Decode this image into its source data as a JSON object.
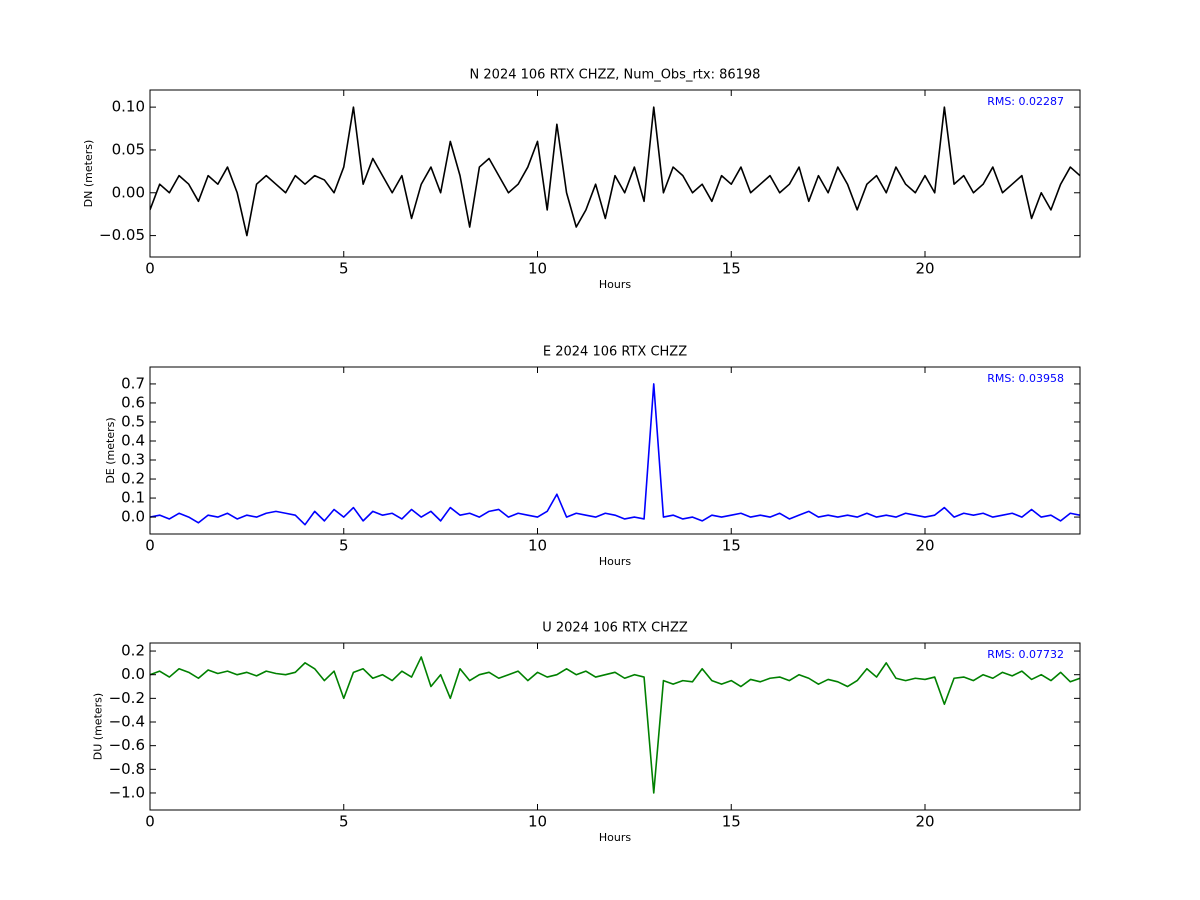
{
  "chart_data": [
    {
      "type": "line",
      "title": "N 2024 106 RTX  CHZZ, Num_Obs_rtx: 86198",
      "xlabel": "Hours",
      "ylabel": "DN (meters)",
      "annotation": "RMS:  0.02287",
      "annotation_color": "#0000ff",
      "color": "#000000",
      "xlim": [
        0,
        24
      ],
      "xticks": [
        0,
        5,
        10,
        15,
        20
      ],
      "ylim": [
        -0.075,
        0.12
      ],
      "yticks": [
        {
          "value": -0.05,
          "label": "−0.05"
        },
        {
          "value": 0,
          "label": "0.00"
        },
        0.05,
        {
          "value": 0.1,
          "label": "0.10"
        }
      ],
      "x": [
        0,
        0.25,
        0.5,
        0.75,
        1,
        1.25,
        1.5,
        1.75,
        2,
        2.25,
        2.5,
        2.75,
        3,
        3.25,
        3.5,
        3.75,
        4,
        4.25,
        4.5,
        4.75,
        5,
        5.25,
        5.5,
        5.75,
        6,
        6.25,
        6.5,
        6.75,
        7,
        7.25,
        7.5,
        7.75,
        8,
        8.25,
        8.5,
        8.75,
        9,
        9.25,
        9.5,
        9.75,
        10,
        10.25,
        10.5,
        10.75,
        11,
        11.25,
        11.5,
        11.75,
        12,
        12.25,
        12.5,
        12.75,
        13,
        13.25,
        13.5,
        13.75,
        14,
        14.25,
        14.5,
        14.75,
        15,
        15.25,
        15.5,
        15.75,
        16,
        16.25,
        16.5,
        16.75,
        17,
        17.25,
        17.5,
        17.75,
        18,
        18.25,
        18.5,
        18.75,
        19,
        19.25,
        19.5,
        19.75,
        20,
        20.25,
        20.5,
        20.75,
        21,
        21.25,
        21.5,
        21.75,
        22,
        22.25,
        22.5,
        22.75,
        23,
        23.25,
        23.5,
        23.75,
        24
      ],
      "values": [
        -0.02,
        0.01,
        0.0,
        0.02,
        0.01,
        -0.01,
        0.02,
        0.01,
        0.03,
        0.0,
        -0.05,
        0.01,
        0.02,
        0.01,
        0.0,
        0.02,
        0.01,
        0.02,
        0.015,
        0.0,
        0.03,
        0.1,
        0.01,
        0.04,
        0.02,
        0.0,
        0.02,
        -0.03,
        0.01,
        0.03,
        0.0,
        0.06,
        0.02,
        -0.04,
        0.03,
        0.04,
        0.02,
        0.0,
        0.01,
        0.03,
        0.06,
        -0.02,
        0.08,
        0.0,
        -0.04,
        -0.02,
        0.01,
        -0.03,
        0.02,
        0.0,
        0.03,
        -0.01,
        0.1,
        0.0,
        0.03,
        0.02,
        0.0,
        0.01,
        -0.01,
        0.02,
        0.01,
        0.03,
        0.0,
        0.01,
        0.02,
        0.0,
        0.01,
        0.03,
        -0.01,
        0.02,
        0.0,
        0.03,
        0.01,
        -0.02,
        0.01,
        0.02,
        0.0,
        0.03,
        0.01,
        0.0,
        0.02,
        0.0,
        0.1,
        0.01,
        0.02,
        0.0,
        0.01,
        0.03,
        0.0,
        0.01,
        0.02,
        -0.03,
        0.0,
        -0.02,
        0.01,
        0.03,
        0.02
      ]
    },
    {
      "type": "line",
      "title": "E 2024 106 RTX  CHZZ",
      "xlabel": "Hours",
      "ylabel": "DE (meters)",
      "annotation": "RMS:  0.03958",
      "annotation_color": "#0000ff",
      "color": "#0000ff",
      "xlim": [
        0,
        24
      ],
      "xticks": [
        0,
        5,
        10,
        15,
        20
      ],
      "ylim": [
        -0.089,
        0.789
      ],
      "yticks": [
        {
          "value": 0,
          "label": "0.0"
        },
        0.1,
        0.2,
        0.3,
        0.4,
        0.5,
        0.6,
        0.7
      ],
      "x": [
        0,
        0.25,
        0.5,
        0.75,
        1,
        1.25,
        1.5,
        1.75,
        2,
        2.25,
        2.5,
        2.75,
        3,
        3.25,
        3.5,
        3.75,
        4,
        4.25,
        4.5,
        4.75,
        5,
        5.25,
        5.5,
        5.75,
        6,
        6.25,
        6.5,
        6.75,
        7,
        7.25,
        7.5,
        7.75,
        8,
        8.25,
        8.5,
        8.75,
        9,
        9.25,
        9.5,
        9.75,
        10,
        10.25,
        10.5,
        10.75,
        11,
        11.25,
        11.5,
        11.75,
        12,
        12.25,
        12.5,
        12.75,
        13,
        13.25,
        13.5,
        13.75,
        14,
        14.25,
        14.5,
        14.75,
        15,
        15.25,
        15.5,
        15.75,
        16,
        16.25,
        16.5,
        16.75,
        17,
        17.25,
        17.5,
        17.75,
        18,
        18.25,
        18.5,
        18.75,
        19,
        19.25,
        19.5,
        19.75,
        20,
        20.25,
        20.5,
        20.75,
        21,
        21.25,
        21.5,
        21.75,
        22,
        22.25,
        22.5,
        22.75,
        23,
        23.25,
        23.5,
        23.75,
        24
      ],
      "values": [
        0,
        0.01,
        -0.01,
        0.02,
        0.0,
        -0.03,
        0.01,
        0.0,
        0.02,
        -0.01,
        0.01,
        0.0,
        0.02,
        0.03,
        0.02,
        0.01,
        -0.04,
        0.03,
        -0.02,
        0.04,
        0.0,
        0.05,
        -0.02,
        0.03,
        0.01,
        0.02,
        -0.01,
        0.04,
        0.0,
        0.03,
        -0.02,
        0.05,
        0.01,
        0.02,
        0.0,
        0.03,
        0.04,
        0.0,
        0.02,
        0.01,
        0.0,
        0.03,
        0.12,
        0.0,
        0.02,
        0.01,
        0.0,
        0.02,
        0.01,
        -0.01,
        0.0,
        -0.01,
        0.7,
        0.0,
        0.01,
        -0.01,
        0.0,
        -0.02,
        0.01,
        0.0,
        0.01,
        0.02,
        0.0,
        0.01,
        0.0,
        0.02,
        -0.01,
        0.01,
        0.03,
        0.0,
        0.01,
        0.0,
        0.01,
        0.0,
        0.02,
        0.0,
        0.01,
        0.0,
        0.02,
        0.01,
        0.0,
        0.01,
        0.05,
        0.0,
        0.02,
        0.01,
        0.02,
        0.0,
        0.01,
        0.02,
        0.0,
        0.04,
        0.0,
        0.01,
        -0.02,
        0.02,
        0.01
      ]
    },
    {
      "type": "line",
      "title": "U 2024 106 RTX  CHZZ",
      "xlabel": "Hours",
      "ylabel": "DU (meters)",
      "annotation": "RMS:  0.07732",
      "annotation_color": "#0000ff",
      "color": "#008000",
      "xlim": [
        0,
        24
      ],
      "xticks": [
        0,
        5,
        10,
        15,
        20
      ],
      "ylim": [
        -1.144,
        0.268
      ],
      "yticks": [
        {
          "value": -1.0,
          "label": "−1.0"
        },
        {
          "value": -0.8,
          "label": "−0.8"
        },
        {
          "value": -0.6,
          "label": "−0.6"
        },
        {
          "value": -0.4,
          "label": "−0.4"
        },
        {
          "value": -0.2,
          "label": "−0.2"
        },
        {
          "value": 0,
          "label": "0.0"
        },
        0.2
      ],
      "x": [
        0,
        0.25,
        0.5,
        0.75,
        1,
        1.25,
        1.5,
        1.75,
        2,
        2.25,
        2.5,
        2.75,
        3,
        3.25,
        3.5,
        3.75,
        4,
        4.25,
        4.5,
        4.75,
        5,
        5.25,
        5.5,
        5.75,
        6,
        6.25,
        6.5,
        6.75,
        7,
        7.25,
        7.5,
        7.75,
        8,
        8.25,
        8.5,
        8.75,
        9,
        9.25,
        9.5,
        9.75,
        10,
        10.25,
        10.5,
        10.75,
        11,
        11.25,
        11.5,
        11.75,
        12,
        12.25,
        12.5,
        12.75,
        13,
        13.25,
        13.5,
        13.75,
        14,
        14.25,
        14.5,
        14.75,
        15,
        15.25,
        15.5,
        15.75,
        16,
        16.25,
        16.5,
        16.75,
        17,
        17.25,
        17.5,
        17.75,
        18,
        18.25,
        18.5,
        18.75,
        19,
        19.25,
        19.5,
        19.75,
        20,
        20.25,
        20.5,
        20.75,
        21,
        21.25,
        21.5,
        21.75,
        22,
        22.25,
        22.5,
        22.75,
        23,
        23.25,
        23.5,
        23.75,
        24
      ],
      "values": [
        0.0,
        0.03,
        -0.02,
        0.05,
        0.02,
        -0.03,
        0.04,
        0.01,
        0.03,
        0.0,
        0.02,
        -0.01,
        0.03,
        0.01,
        0.0,
        0.02,
        0.1,
        0.05,
        -0.05,
        0.03,
        -0.2,
        0.02,
        0.05,
        -0.03,
        0.0,
        -0.05,
        0.03,
        -0.02,
        0.15,
        -0.1,
        0.0,
        -0.2,
        0.05,
        -0.05,
        0.0,
        0.02,
        -0.03,
        0.0,
        0.03,
        -0.05,
        0.02,
        -0.02,
        0.0,
        0.05,
        0.0,
        0.03,
        -0.02,
        0.0,
        0.02,
        -0.03,
        0.0,
        -0.02,
        -1.0,
        -0.05,
        -0.08,
        -0.05,
        -0.06,
        0.05,
        -0.05,
        -0.08,
        -0.05,
        -0.1,
        -0.04,
        -0.06,
        -0.03,
        -0.02,
        -0.05,
        0.0,
        -0.03,
        -0.08,
        -0.04,
        -0.06,
        -0.1,
        -0.05,
        0.05,
        -0.02,
        0.1,
        -0.03,
        -0.05,
        -0.03,
        -0.04,
        -0.02,
        -0.25,
        -0.03,
        -0.02,
        -0.05,
        0.0,
        -0.03,
        0.02,
        -0.01,
        0.03,
        -0.04,
        0.0,
        -0.05,
        0.02,
        -0.06,
        -0.03
      ]
    }
  ]
}
